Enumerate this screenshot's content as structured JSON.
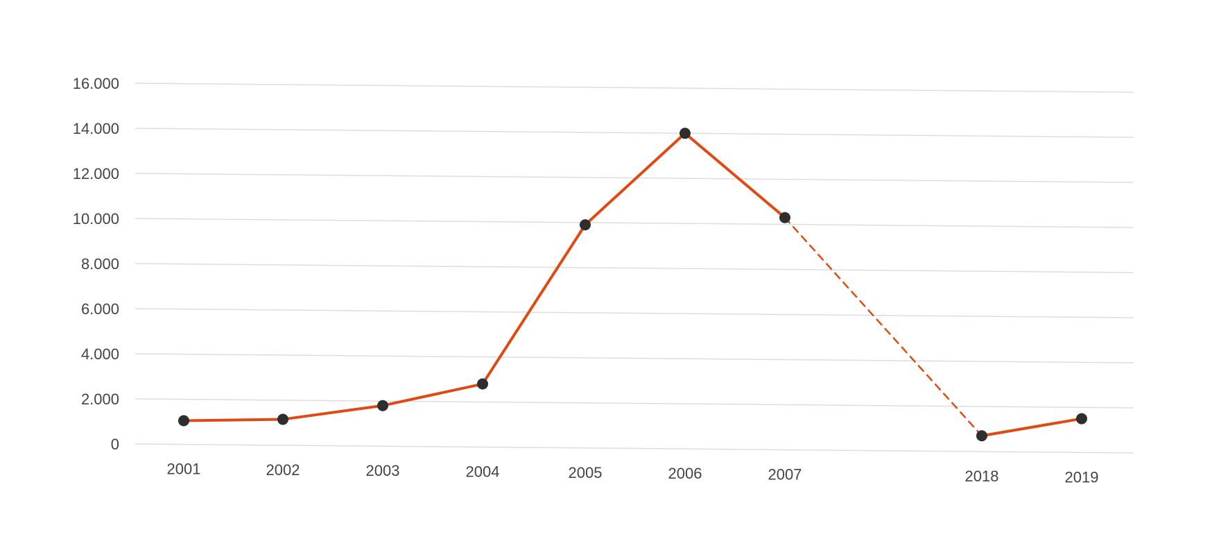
{
  "chart_data": {
    "type": "line",
    "title": "",
    "xlabel": "",
    "ylabel": "",
    "categories": [
      "2001",
      "2002",
      "2003",
      "2004",
      "2005",
      "2006",
      "2007",
      "2018",
      "2019"
    ],
    "series": [
      {
        "values": [
          1050,
          1150,
          1800,
          2800,
          9900,
          14000,
          10300,
          700,
          1500
        ]
      }
    ],
    "broken_segment": {
      "from": "2007",
      "to": "2018",
      "style": "dashed"
    },
    "yticks": [
      "0",
      "2.000",
      "4.000",
      "6.000",
      "8.000",
      "10.000",
      "12.000",
      "14.000",
      "16.000"
    ],
    "ylim": [
      0,
      16000
    ],
    "grid": true,
    "legend": "none",
    "colors": {
      "line": "#e04a12",
      "marker": "#2e2e2e",
      "grid": "#dddddd",
      "text": "#444444"
    }
  }
}
